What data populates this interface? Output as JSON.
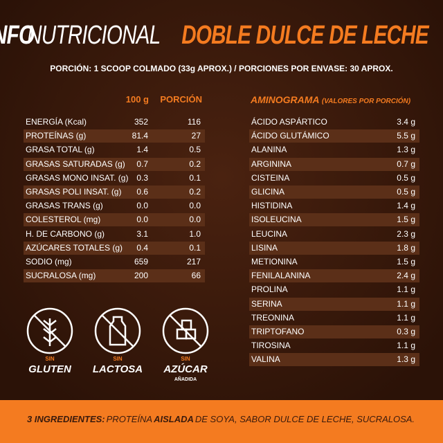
{
  "header": {
    "title_a": "INFO",
    "title_b": "NUTRICIONAL",
    "title_c": "DOBLE DULCE DE LECHE",
    "serving": "PORCIÓN: 1 SCOOP COLMADO (33g APROX.) / PORCIONES POR ENVASE: 30 APROX."
  },
  "nutrition": {
    "columns": [
      "100 g",
      "PORCIÓN"
    ],
    "rows": [
      [
        "ENERGÍA (Kcal)",
        "352",
        "116"
      ],
      [
        "PROTEÍNAS (g)",
        "81.4",
        "27"
      ],
      [
        "GRASA TOTAL (g)",
        "1.4",
        "0.5"
      ],
      [
        "GRASAS SATURADAS (g)",
        "0.7",
        "0.2"
      ],
      [
        "GRASAS MONO INSAT. (g)",
        "0.3",
        "0.1"
      ],
      [
        "GRASAS POLI INSAT. (g)",
        "0.6",
        "0.2"
      ],
      [
        "GRASAS TRANS (g)",
        "0.0",
        "0.0"
      ],
      [
        "COLESTEROL (mg)",
        "0.0",
        "0.0"
      ],
      [
        "H. DE CARBONO (g)",
        "3.1",
        "1.0"
      ],
      [
        "AZÚCARES TOTALES (g)",
        "0.4",
        "0.1"
      ],
      [
        "SODIO (mg)",
        "659",
        "217"
      ],
      [
        "SUCRALOSA (mg)",
        "200",
        "66"
      ]
    ]
  },
  "aminogram": {
    "title": "AMINOGRAMA",
    "note": "(VALORES POR PORCIÓN)",
    "rows": [
      [
        "ÁCIDO ASPÁRTICO",
        "3.4 g"
      ],
      [
        "ÁCIDO GLUTÁMICO",
        "5.5 g"
      ],
      [
        "ALANINA",
        "1.3 g"
      ],
      [
        "ARGININA",
        "0.7 g"
      ],
      [
        "CISTEINA",
        "0.5 g"
      ],
      [
        "GLICINA",
        "0.5 g"
      ],
      [
        "HISTIDINA",
        "1.4 g"
      ],
      [
        "ISOLEUCINA",
        "1.5 g"
      ],
      [
        "LEUCINA",
        "2.3 g"
      ],
      [
        "LISINA",
        "1.8 g"
      ],
      [
        "METIONINA",
        "1.5 g"
      ],
      [
        "FENILALANINA",
        "2.4 g"
      ],
      [
        "PROLINA",
        "1.1 g"
      ],
      [
        "SERINA",
        "1.1 g"
      ],
      [
        "TREONINA",
        "1.1 g"
      ],
      [
        "TRIPTOFANO",
        "0.3 g"
      ],
      [
        "TIROSINA",
        "1.1 g"
      ],
      [
        "VALINA",
        "1.3 g"
      ]
    ]
  },
  "badges": [
    {
      "top": "SIN",
      "label": "GLUTEN"
    },
    {
      "top": "SIN",
      "label": "LACTOSA"
    },
    {
      "top": "SIN",
      "label": "AZÚCAR",
      "sub": "AÑADIDA"
    }
  ],
  "footer": {
    "lead": "3 INGREDIENTES:",
    "a": "PROTEÍNA",
    "b": "AISLADA",
    "c": "DE SOYA, SABOR DULCE DE LECHE, SUCRALOSA."
  }
}
